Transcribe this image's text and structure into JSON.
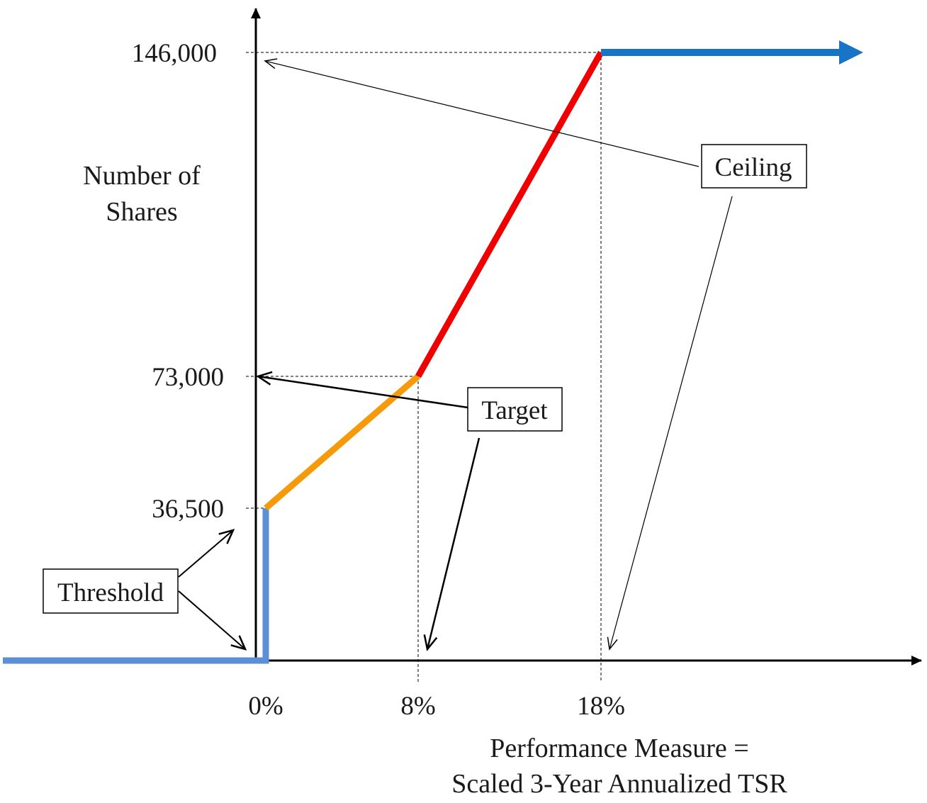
{
  "chart_data": {
    "type": "line",
    "title": "",
    "ylabel": [
      "Number of",
      "Shares"
    ],
    "xlabel": [
      "Performance Measure =",
      "Scaled 3-Year Annualized TSR"
    ],
    "x_ticks": [
      {
        "x": 0,
        "label": "0%"
      },
      {
        "x": 8,
        "label": "8%"
      },
      {
        "x": 18,
        "label": "18%"
      }
    ],
    "y_ticks": [
      {
        "y": 36500,
        "label": "36,500"
      },
      {
        "y": 73000,
        "label": "73,000"
      },
      {
        "y": 146000,
        "label": "146,000"
      }
    ],
    "segments": [
      {
        "name": "below-threshold",
        "color": "#5b8fd6",
        "points": [
          [
            -14,
            0
          ],
          [
            0,
            0
          ],
          [
            0,
            36500
          ]
        ]
      },
      {
        "name": "threshold-to-target",
        "color": "#f59b0b",
        "points": [
          [
            0,
            36500
          ],
          [
            8,
            73000
          ]
        ]
      },
      {
        "name": "target-to-ceiling",
        "color": "#f00000",
        "points": [
          [
            8,
            73000
          ],
          [
            18,
            146000
          ]
        ]
      },
      {
        "name": "above-ceiling",
        "color": "#1874c6",
        "points": [
          [
            18,
            146000
          ],
          [
            32.5,
            146000
          ]
        ],
        "arrow": true
      }
    ],
    "annotations": [
      {
        "label": "Threshold"
      },
      {
        "label": "Target"
      },
      {
        "label": "Ceiling"
      }
    ],
    "colors": {
      "axis": "#000000",
      "below_threshold": "#5b8fd6",
      "threshold_to_target": "#f59b0b",
      "target_to_ceiling": "#f00000",
      "above_ceiling": "#1874c6"
    }
  }
}
